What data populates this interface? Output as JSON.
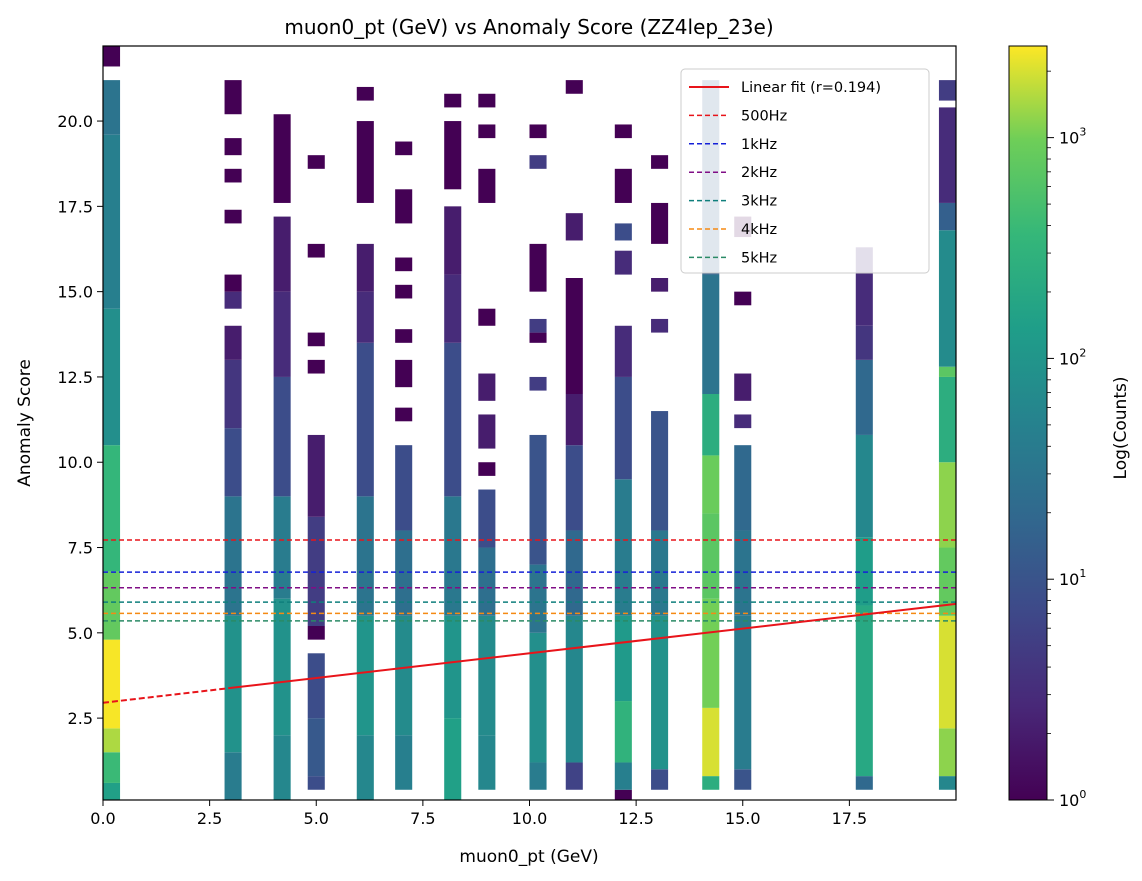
{
  "chart_data": {
    "type": "heatmap",
    "title": "muon0_pt (GeV) vs Anomaly Score (ZZ4lep_23e)",
    "xlabel": "muon0_pt (GeV)",
    "ylabel": "Anomaly Score",
    "xlim": [
      0,
      20
    ],
    "ylim": [
      0.1,
      22.2
    ],
    "xticks": [
      "0.0",
      "2.5",
      "5.0",
      "7.5",
      "10.0",
      "12.5",
      "15.0",
      "17.5"
    ],
    "xtick_values": [
      0,
      2.5,
      5,
      7.5,
      10,
      12.5,
      15,
      17.5
    ],
    "yticks": [
      "2.5",
      "5.0",
      "7.5",
      "10.0",
      "12.5",
      "15.0",
      "17.5",
      "20.0"
    ],
    "ytick_values": [
      2.5,
      5,
      7.5,
      10,
      12.5,
      15,
      17.5,
      20
    ],
    "colorbar": {
      "label": "Log(Counts)",
      "scale": "log",
      "range": [
        1,
        2600
      ],
      "ticks": [
        {
          "value": 1,
          "base": "10",
          "exp": "0"
        },
        {
          "value": 10,
          "base": "10",
          "exp": "1"
        },
        {
          "value": 100,
          "base": "10",
          "exp": "2"
        },
        {
          "value": 1000,
          "base": "10",
          "exp": "3"
        }
      ]
    },
    "fit": {
      "label": "Linear fit (r=0.194)",
      "intercept": 2.95,
      "slope": 0.145,
      "solid_from_x": 3.0,
      "color": "#e8141a"
    },
    "thresholds": [
      {
        "label": "500Hz",
        "y": 7.72,
        "color": "#e8141a"
      },
      {
        "label": "1kHz",
        "y": 6.78,
        "color": "#1520d8"
      },
      {
        "label": "2kHz",
        "y": 6.32,
        "color": "#800e86"
      },
      {
        "label": "3kHz",
        "y": 5.9,
        "color": "#0f7f7c"
      },
      {
        "label": "4kHz",
        "y": 5.57,
        "color": "#f58a13"
      },
      {
        "label": "5kHz",
        "y": 5.35,
        "color": "#2a8a66"
      }
    ],
    "columns": [
      {
        "x": 0.2,
        "bands": [
          [
            0.1,
            0.6,
            150
          ],
          [
            0.6,
            1.5,
            400
          ],
          [
            1.5,
            2.2,
            1500
          ],
          [
            2.2,
            4.8,
            2500
          ],
          [
            4.8,
            6.8,
            800
          ],
          [
            6.8,
            10.5,
            350
          ],
          [
            10.5,
            14.5,
            80
          ],
          [
            14.5,
            19.6,
            45
          ],
          [
            19.6,
            21.2,
            30
          ],
          [
            21.6,
            22.2,
            1
          ]
        ]
      },
      {
        "x": 3.05,
        "bands": [
          [
            0.1,
            1.5,
            40
          ],
          [
            1.5,
            5.5,
            90
          ],
          [
            5.5,
            9.0,
            30
          ],
          [
            9.0,
            11.0,
            8
          ],
          [
            11.0,
            13.0,
            4
          ],
          [
            13.0,
            14.0,
            2
          ],
          [
            14.5,
            15.0,
            3
          ],
          [
            15.0,
            15.5,
            1
          ],
          [
            17.0,
            17.4,
            1
          ],
          [
            18.2,
            18.6,
            1
          ],
          [
            19.0,
            19.5,
            1
          ],
          [
            20.2,
            21.2,
            1
          ]
        ]
      },
      {
        "x": 4.2,
        "bands": [
          [
            0.1,
            2.0,
            60
          ],
          [
            2.0,
            6.0,
            90
          ],
          [
            6.0,
            9.0,
            40
          ],
          [
            9.0,
            12.5,
            8
          ],
          [
            12.5,
            15.0,
            3
          ],
          [
            15.0,
            17.2,
            2
          ],
          [
            17.6,
            20.2,
            1
          ]
        ]
      },
      {
        "x": 5.0,
        "bands": [
          [
            0.4,
            0.8,
            8
          ],
          [
            0.8,
            2.5,
            12
          ],
          [
            2.5,
            4.4,
            8
          ],
          [
            4.8,
            5.2,
            1
          ],
          [
            5.2,
            8.4,
            5
          ],
          [
            8.4,
            10.8,
            2
          ],
          [
            12.6,
            13.0,
            1
          ],
          [
            13.4,
            13.8,
            1
          ],
          [
            16.0,
            16.4,
            1
          ],
          [
            18.6,
            19.0,
            1
          ]
        ]
      },
      {
        "x": 6.15,
        "bands": [
          [
            0.1,
            2.0,
            60
          ],
          [
            2.0,
            5.5,
            100
          ],
          [
            5.5,
            9.0,
            30
          ],
          [
            9.0,
            13.5,
            8
          ],
          [
            13.5,
            15.0,
            3
          ],
          [
            15.0,
            16.4,
            2
          ],
          [
            17.6,
            20.0,
            1
          ],
          [
            20.6,
            21.0,
            1
          ]
        ]
      },
      {
        "x": 7.05,
        "bands": [
          [
            0.4,
            2.0,
            45
          ],
          [
            2.0,
            5.5,
            70
          ],
          [
            5.5,
            8.0,
            25
          ],
          [
            8.0,
            10.5,
            8
          ],
          [
            11.2,
            11.6,
            1
          ],
          [
            12.2,
            13.0,
            1
          ],
          [
            13.5,
            13.9,
            1
          ],
          [
            14.8,
            15.2,
            1
          ],
          [
            15.6,
            16.0,
            1
          ],
          [
            17.0,
            18.0,
            1
          ],
          [
            19.0,
            19.4,
            1
          ]
        ]
      },
      {
        "x": 8.2,
        "bands": [
          [
            0.1,
            2.5,
            150
          ],
          [
            2.5,
            5.5,
            100
          ],
          [
            5.5,
            9.0,
            35
          ],
          [
            9.0,
            13.5,
            8
          ],
          [
            13.5,
            15.5,
            3
          ],
          [
            15.5,
            17.5,
            2
          ],
          [
            18.0,
            20.0,
            1
          ],
          [
            20.4,
            20.8,
            1
          ]
        ]
      },
      {
        "x": 9.0,
        "bands": [
          [
            0.4,
            2.0,
            60
          ],
          [
            2.0,
            5.5,
            70
          ],
          [
            5.5,
            7.5,
            25
          ],
          [
            7.5,
            9.2,
            8
          ],
          [
            9.6,
            10.0,
            1
          ],
          [
            10.4,
            11.4,
            2
          ],
          [
            11.8,
            12.6,
            2
          ],
          [
            14.0,
            14.5,
            1
          ],
          [
            17.6,
            18.6,
            1
          ],
          [
            19.5,
            19.9,
            1
          ],
          [
            20.4,
            20.8,
            1
          ]
        ]
      },
      {
        "x": 10.2,
        "bands": [
          [
            0.4,
            1.2,
            40
          ],
          [
            1.2,
            5.0,
            80
          ],
          [
            5.0,
            7.0,
            30
          ],
          [
            7.0,
            10.8,
            10
          ],
          [
            12.1,
            12.5,
            5
          ],
          [
            13.5,
            13.8,
            1
          ],
          [
            13.8,
            14.2,
            5
          ],
          [
            15.0,
            16.4,
            1
          ],
          [
            18.6,
            19.0,
            5
          ],
          [
            19.5,
            19.9,
            1
          ]
        ]
      },
      {
        "x": 11.05,
        "bands": [
          [
            0.4,
            1.2,
            6
          ],
          [
            1.2,
            5.5,
            60
          ],
          [
            5.5,
            8.0,
            20
          ],
          [
            8.0,
            10.5,
            8
          ],
          [
            10.5,
            12.0,
            2
          ],
          [
            12.0,
            15.4,
            1
          ],
          [
            16.5,
            17.3,
            2
          ],
          [
            20.8,
            21.2,
            1
          ]
        ]
      },
      {
        "x": 12.2,
        "bands": [
          [
            0.1,
            0.4,
            1
          ],
          [
            0.4,
            1.2,
            45
          ],
          [
            1.2,
            3.0,
            300
          ],
          [
            3.0,
            5.5,
            120
          ],
          [
            5.5,
            9.5,
            40
          ],
          [
            9.5,
            12.5,
            8
          ],
          [
            12.5,
            14.0,
            3
          ],
          [
            15.5,
            16.2,
            3
          ],
          [
            16.5,
            17.0,
            8
          ],
          [
            17.6,
            18.6,
            1
          ],
          [
            19.5,
            19.9,
            1
          ]
        ]
      },
      {
        "x": 13.05,
        "bands": [
          [
            0.4,
            1.0,
            8
          ],
          [
            1.0,
            5.5,
            90
          ],
          [
            5.5,
            8.0,
            35
          ],
          [
            8.0,
            11.5,
            10
          ],
          [
            13.8,
            14.2,
            3
          ],
          [
            15.0,
            15.4,
            2
          ],
          [
            16.4,
            17.6,
            1
          ],
          [
            18.6,
            19.0,
            1
          ]
        ]
      },
      {
        "x": 14.25,
        "bands": [
          [
            0.4,
            0.8,
            250
          ],
          [
            0.8,
            2.8,
            2000
          ],
          [
            2.8,
            6.0,
            1000
          ],
          [
            6.0,
            8.5,
            700
          ],
          [
            8.5,
            10.2,
            900
          ],
          [
            10.2,
            12.0,
            250
          ],
          [
            12.0,
            15.5,
            30
          ],
          [
            15.5,
            21.2,
            15
          ]
        ]
      },
      {
        "x": 15.0,
        "bands": [
          [
            0.4,
            1.0,
            10
          ],
          [
            1.0,
            5.5,
            40
          ],
          [
            5.5,
            8.0,
            30
          ],
          [
            8.0,
            10.5,
            20
          ],
          [
            11.0,
            11.4,
            3
          ],
          [
            11.8,
            12.6,
            2
          ],
          [
            14.6,
            15.0,
            1
          ],
          [
            16.6,
            17.2,
            1
          ]
        ]
      },
      {
        "x": 17.85,
        "bands": [
          [
            0.4,
            0.8,
            20
          ],
          [
            0.8,
            5.8,
            200
          ],
          [
            5.8,
            7.8,
            130
          ],
          [
            7.8,
            10.8,
            60
          ],
          [
            10.8,
            13.0,
            20
          ],
          [
            13.0,
            14.0,
            4
          ],
          [
            14.0,
            16.3,
            3
          ]
        ]
      },
      {
        "x": 19.8,
        "bands": [
          [
            0.4,
            0.8,
            60
          ],
          [
            0.8,
            2.2,
            1200
          ],
          [
            2.2,
            5.5,
            2000
          ],
          [
            5.5,
            7.5,
            800
          ],
          [
            7.5,
            10.0,
            1200
          ],
          [
            10.0,
            12.5,
            250
          ],
          [
            12.5,
            12.8,
            700
          ],
          [
            12.8,
            16.8,
            70
          ],
          [
            16.8,
            17.6,
            15
          ],
          [
            17.6,
            20.4,
            3
          ],
          [
            20.6,
            21.2,
            5
          ]
        ]
      }
    ]
  }
}
